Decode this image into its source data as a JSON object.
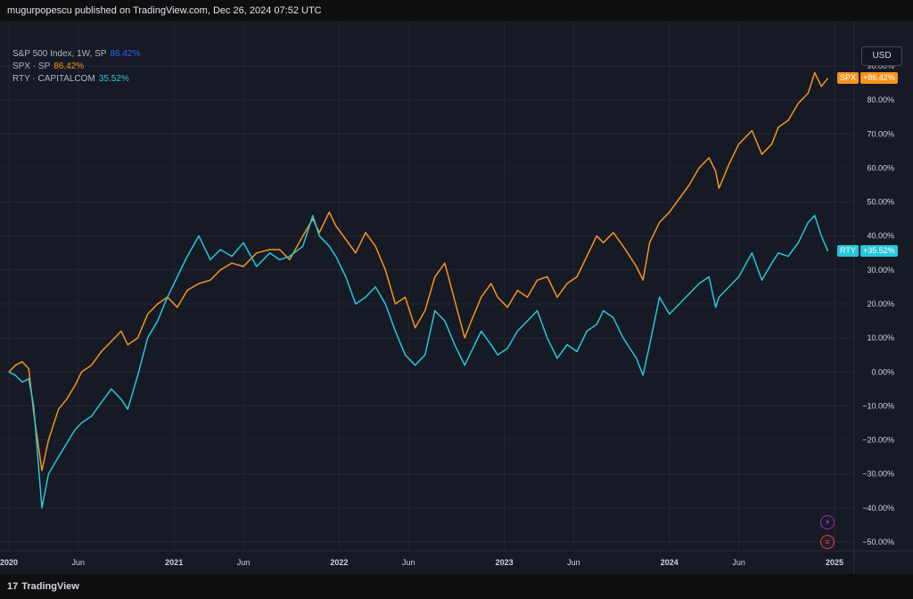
{
  "header": {
    "title": "mugurpopescu published on TradingView.com, Dec 26, 2024 07:52 UTC"
  },
  "legend": [
    {
      "label": "S&P 500 Index, 1W, SP",
      "value": "86.42%",
      "color": "#2962ff"
    },
    {
      "label": "SPX · SP",
      "value": "86.42%",
      "color": "#f7931a"
    },
    {
      "label": "RTY · CAPITALCOM",
      "value": "35.52%",
      "color": "#26c6da"
    }
  ],
  "currency_button": "USD",
  "brand": {
    "logo": "17",
    "name": "TradingView"
  },
  "colors": {
    "spx": "#f7931a",
    "rty": "#26c6da",
    "background": "#161a25",
    "grid": "#232632"
  },
  "icons": [
    "lightning-icon",
    "us-flag-icon"
  ],
  "chart_data": {
    "type": "line",
    "yaxis": {
      "ticks": [
        "90.00%",
        "80.00%",
        "70.00%",
        "60.00%",
        "50.00%",
        "40.00%",
        "30.00%",
        "20.00%",
        "10.00%",
        "0.00%",
        "−10.00%",
        "−20.00%",
        "−30.00%",
        "−40.00%",
        "−50.00%"
      ],
      "tick_values": [
        90,
        80,
        70,
        60,
        50,
        40,
        30,
        20,
        10,
        0,
        -10,
        -20,
        -30,
        -40,
        -50
      ],
      "range": [
        -50,
        90
      ]
    },
    "xaxis": {
      "labels": [
        "2020",
        "Jun",
        "2021",
        "Jun",
        "2022",
        "Jun",
        "2023",
        "Jun",
        "2024",
        "Jun",
        "2025"
      ],
      "label_dates": [
        2020.0,
        2020.42,
        2021.0,
        2021.42,
        2022.0,
        2022.42,
        2023.0,
        2023.42,
        2024.0,
        2024.42,
        2025.0
      ],
      "range": [
        2019.97,
        2025.05
      ]
    },
    "series": [
      {
        "name": "SPX",
        "color": "#f7931a",
        "last_label": "+86.42%",
        "points": [
          [
            2020.0,
            0
          ],
          [
            2020.04,
            2
          ],
          [
            2020.08,
            3
          ],
          [
            2020.12,
            1
          ],
          [
            2020.15,
            -12
          ],
          [
            2020.2,
            -29
          ],
          [
            2020.24,
            -20
          ],
          [
            2020.3,
            -11
          ],
          [
            2020.35,
            -8
          ],
          [
            2020.4,
            -4
          ],
          [
            2020.44,
            0
          ],
          [
            2020.5,
            2
          ],
          [
            2020.56,
            6
          ],
          [
            2020.62,
            9
          ],
          [
            2020.68,
            12
          ],
          [
            2020.72,
            8
          ],
          [
            2020.78,
            10
          ],
          [
            2020.84,
            17
          ],
          [
            2020.9,
            20
          ],
          [
            2020.96,
            22
          ],
          [
            2021.02,
            19
          ],
          [
            2021.08,
            24
          ],
          [
            2021.15,
            26
          ],
          [
            2021.22,
            27
          ],
          [
            2021.28,
            30
          ],
          [
            2021.35,
            32
          ],
          [
            2021.42,
            31
          ],
          [
            2021.5,
            35
          ],
          [
            2021.58,
            36
          ],
          [
            2021.64,
            36
          ],
          [
            2021.7,
            33
          ],
          [
            2021.78,
            40
          ],
          [
            2021.84,
            45
          ],
          [
            2021.88,
            41
          ],
          [
            2021.94,
            47
          ],
          [
            2021.98,
            43
          ],
          [
            2022.04,
            39
          ],
          [
            2022.1,
            35
          ],
          [
            2022.16,
            41
          ],
          [
            2022.22,
            37
          ],
          [
            2022.28,
            30
          ],
          [
            2022.34,
            20
          ],
          [
            2022.4,
            22
          ],
          [
            2022.46,
            13
          ],
          [
            2022.52,
            18
          ],
          [
            2022.58,
            28
          ],
          [
            2022.64,
            32
          ],
          [
            2022.7,
            21
          ],
          [
            2022.76,
            10
          ],
          [
            2022.8,
            15
          ],
          [
            2022.86,
            22
          ],
          [
            2022.92,
            26
          ],
          [
            2022.96,
            22
          ],
          [
            2023.02,
            19
          ],
          [
            2023.08,
            24
          ],
          [
            2023.14,
            22
          ],
          [
            2023.2,
            27
          ],
          [
            2023.26,
            28
          ],
          [
            2023.32,
            22
          ],
          [
            2023.38,
            26
          ],
          [
            2023.44,
            28
          ],
          [
            2023.5,
            34
          ],
          [
            2023.56,
            40
          ],
          [
            2023.6,
            38
          ],
          [
            2023.66,
            41
          ],
          [
            2023.72,
            37
          ],
          [
            2023.8,
            31
          ],
          [
            2023.84,
            27
          ],
          [
            2023.88,
            38
          ],
          [
            2023.94,
            44
          ],
          [
            2024.0,
            47
          ],
          [
            2024.06,
            51
          ],
          [
            2024.12,
            55
          ],
          [
            2024.18,
            60
          ],
          [
            2024.24,
            63
          ],
          [
            2024.28,
            59
          ],
          [
            2024.3,
            54
          ],
          [
            2024.36,
            61
          ],
          [
            2024.42,
            67
          ],
          [
            2024.5,
            71
          ],
          [
            2024.56,
            64
          ],
          [
            2024.62,
            67
          ],
          [
            2024.66,
            72
          ],
          [
            2024.72,
            74
          ],
          [
            2024.78,
            79
          ],
          [
            2024.84,
            82
          ],
          [
            2024.88,
            88
          ],
          [
            2024.92,
            84
          ],
          [
            2024.96,
            86.42
          ]
        ]
      },
      {
        "name": "RTY",
        "color": "#26c6da",
        "last_label": "+35.52%",
        "points": [
          [
            2020.0,
            0
          ],
          [
            2020.04,
            -1
          ],
          [
            2020.08,
            -3
          ],
          [
            2020.12,
            -2
          ],
          [
            2020.15,
            -10
          ],
          [
            2020.2,
            -40
          ],
          [
            2020.24,
            -30
          ],
          [
            2020.3,
            -25
          ],
          [
            2020.35,
            -21
          ],
          [
            2020.4,
            -17
          ],
          [
            2020.44,
            -15
          ],
          [
            2020.5,
            -13
          ],
          [
            2020.56,
            -9
          ],
          [
            2020.62,
            -5
          ],
          [
            2020.68,
            -8
          ],
          [
            2020.72,
            -11
          ],
          [
            2020.78,
            -1
          ],
          [
            2020.84,
            10
          ],
          [
            2020.9,
            15
          ],
          [
            2020.96,
            22
          ],
          [
            2021.02,
            28
          ],
          [
            2021.08,
            34
          ],
          [
            2021.15,
            40
          ],
          [
            2021.22,
            33
          ],
          [
            2021.28,
            36
          ],
          [
            2021.35,
            34
          ],
          [
            2021.42,
            38
          ],
          [
            2021.5,
            31
          ],
          [
            2021.58,
            35
          ],
          [
            2021.64,
            33
          ],
          [
            2021.7,
            34
          ],
          [
            2021.78,
            37
          ],
          [
            2021.84,
            46
          ],
          [
            2021.88,
            40
          ],
          [
            2021.94,
            37
          ],
          [
            2021.98,
            34
          ],
          [
            2022.04,
            28
          ],
          [
            2022.1,
            20
          ],
          [
            2022.16,
            22
          ],
          [
            2022.22,
            25
          ],
          [
            2022.28,
            20
          ],
          [
            2022.34,
            12
          ],
          [
            2022.4,
            5
          ],
          [
            2022.46,
            2
          ],
          [
            2022.52,
            5
          ],
          [
            2022.58,
            18
          ],
          [
            2022.64,
            15
          ],
          [
            2022.7,
            8
          ],
          [
            2022.76,
            2
          ],
          [
            2022.8,
            6
          ],
          [
            2022.86,
            12
          ],
          [
            2022.92,
            8
          ],
          [
            2022.96,
            5
          ],
          [
            2023.02,
            7
          ],
          [
            2023.08,
            12
          ],
          [
            2023.14,
            15
          ],
          [
            2023.2,
            18
          ],
          [
            2023.26,
            10
          ],
          [
            2023.32,
            4
          ],
          [
            2023.38,
            8
          ],
          [
            2023.44,
            6
          ],
          [
            2023.5,
            12
          ],
          [
            2023.56,
            14
          ],
          [
            2023.6,
            18
          ],
          [
            2023.66,
            16
          ],
          [
            2023.72,
            10
          ],
          [
            2023.8,
            4
          ],
          [
            2023.84,
            -1
          ],
          [
            2023.88,
            8
          ],
          [
            2023.94,
            22
          ],
          [
            2024.0,
            17
          ],
          [
            2024.06,
            20
          ],
          [
            2024.12,
            23
          ],
          [
            2024.18,
            26
          ],
          [
            2024.24,
            28
          ],
          [
            2024.28,
            19
          ],
          [
            2024.3,
            22
          ],
          [
            2024.36,
            25
          ],
          [
            2024.42,
            28
          ],
          [
            2024.5,
            35
          ],
          [
            2024.56,
            27
          ],
          [
            2024.62,
            32
          ],
          [
            2024.66,
            35
          ],
          [
            2024.72,
            34
          ],
          [
            2024.78,
            38
          ],
          [
            2024.84,
            44
          ],
          [
            2024.88,
            46
          ],
          [
            2024.92,
            40
          ],
          [
            2024.96,
            35.52
          ]
        ]
      }
    ]
  }
}
